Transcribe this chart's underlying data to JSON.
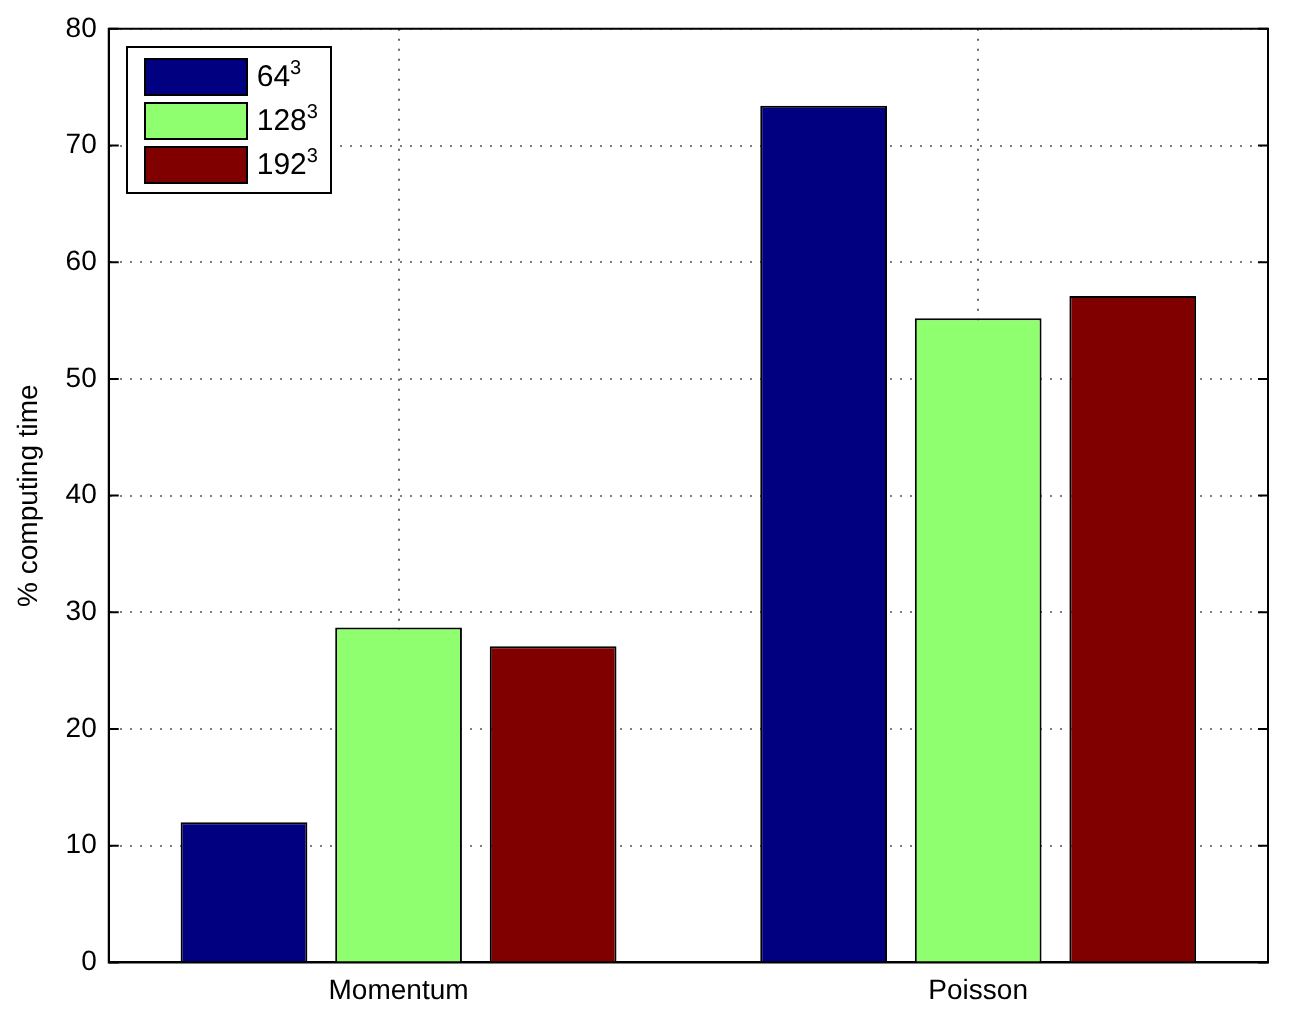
{
  "chart_data": {
    "type": "bar",
    "ylabel": "% computing time",
    "categories": [
      "Momentum",
      "Poisson"
    ],
    "series": [
      {
        "name": "64$^{3}$",
        "color": "#000080",
        "values": [
          12.0,
          73.4
        ]
      },
      {
        "name": "128$^{3}$",
        "color": "#8fff6f",
        "values": [
          28.7,
          55.2
        ]
      },
      {
        "name": "192$^{3}$",
        "color": "#800000",
        "values": [
          27.1,
          57.1
        ]
      }
    ],
    "ylim": [
      0,
      80
    ],
    "yticks": [
      0,
      10,
      20,
      30,
      40,
      50,
      60,
      70,
      80
    ],
    "grid": true,
    "legend": "top left"
  }
}
